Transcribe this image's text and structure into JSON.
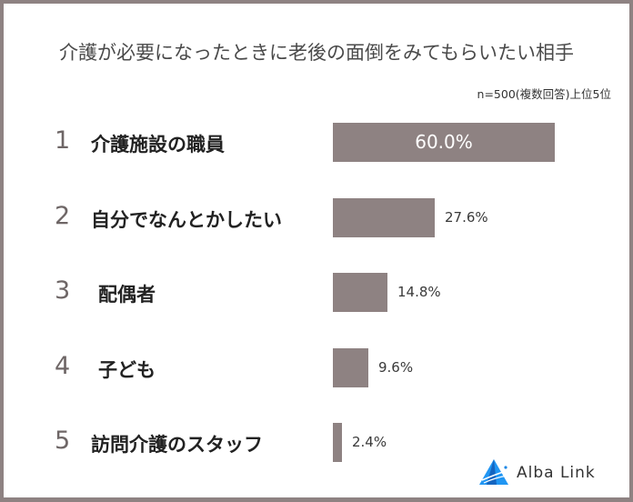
{
  "title": "介護が必要になったときに老後の面倒をみてもらいたい相手",
  "subtitle": "n=500(複数回答)上位5位",
  "colors": {
    "bar": "#8e8282",
    "border": "#8e8282",
    "logo_blue": "#1e88e5"
  },
  "rows": [
    {
      "rank": "1",
      "label": "介護施設の職員",
      "value_label": "60.0%"
    },
    {
      "rank": "2",
      "label": "自分でなんとかしたい",
      "value_label": "27.6%"
    },
    {
      "rank": "3",
      "label": "配偶者",
      "value_label": "14.8%"
    },
    {
      "rank": "4",
      "label": "子ども",
      "value_label": "9.6%"
    },
    {
      "rank": "5",
      "label": "訪問介護のスタッフ",
      "value_label": "2.4%"
    }
  ],
  "logo": {
    "text": "Alba Link",
    "icon": "alba-link-triangle-icon"
  },
  "chart_data": {
    "type": "bar",
    "orientation": "horizontal",
    "title": "介護が必要になったときに老後の面倒をみてもらいたい相手",
    "subtitle": "n=500(複数回答)上位5位",
    "categories": [
      "介護施設の職員",
      "自分でなんとかしたい",
      "配偶者",
      "子ども",
      "訪問介護のスタッフ"
    ],
    "ranks": [
      1,
      2,
      3,
      4,
      5
    ],
    "values": [
      60.0,
      27.6,
      14.8,
      9.6,
      2.4
    ],
    "unit": "%",
    "xlabel": "",
    "ylabel": "",
    "xlim": [
      0,
      60
    ],
    "grid": false,
    "legend": "none",
    "data_labels": true
  }
}
